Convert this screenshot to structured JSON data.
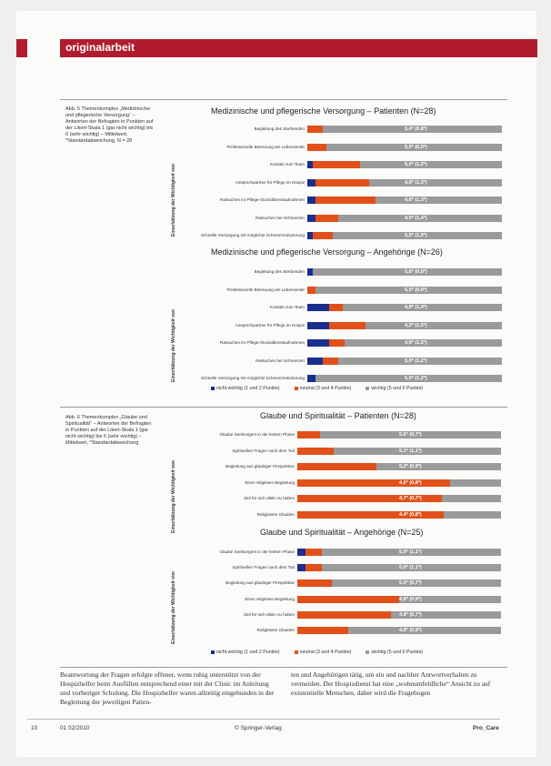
{
  "header": {
    "title": "originalarbeit"
  },
  "captions": [
    {
      "text": "Abb. 5 Themenkomplex „Medizinische und pflegerische Versorgung“ – Antworten der Befragten in Punkten auf der Likert-Skala 1 (gar nicht wichtig) bis 6 (sehr wichtig) – Mittelwert, *Standardabweichung, N = 28"
    },
    {
      "text": "Abb. 6 Themenkomplex „Glaube und Spiritualität“ – Antworten der Befragten in Punkten auf der Likert-Skala 1 (gar nicht wichtig) bis 6 (sehr wichtig) – Mittelwert, *Standardabweichung"
    }
  ],
  "legend": {
    "items": [
      {
        "label": "nicht wichtig (1 und 2 Punkte)",
        "color": "#1a2e8c"
      },
      {
        "label": "neutral (3 und 4 Punkte)",
        "color": "#e2501a"
      },
      {
        "label": "wichtig (5 und 6 Punkte)",
        "color": "#9a9a9a"
      }
    ]
  },
  "chart_data": [
    {
      "type": "bar",
      "title": "Medizinische und pflegerische Versorgung – Patienten (N=28)",
      "ylabel": "Einschätzung der Wichtigkeit von",
      "categories": [
        "Begleitung des Sterbenden",
        "Professionelle Betreuung am Lebensende",
        "Kontakt zum Team",
        "Ansprechpartner für Pflege im Hospiz",
        "Ratsuchen im Pflege-/Sozialdienstaufnahmen",
        "Ratsuchen bei Schmerzen",
        "Schnelle Versorgung mit möglichst Schmerzreduzierung"
      ],
      "series": [
        {
          "values": [
            0,
            0,
            3,
            4,
            4,
            4,
            3
          ]
        },
        {
          "values": [
            8,
            10,
            24,
            28,
            31,
            12,
            10
          ]
        },
        {
          "values": [
            92,
            90,
            73,
            68,
            65,
            84,
            87
          ]
        }
      ],
      "value_labels": [
        "5,4* (0,8*)",
        "5,5* (0,9*)",
        "5,0* (1,2*)",
        "4,8* (1,3*)",
        "4,8* (1,3*)",
        "4,9* (1,4*)",
        "5,5* (1,0*)"
      ]
    },
    {
      "type": "bar",
      "title": "Medizinische und pflegerische Versorgung – Angehörige (N=26)",
      "ylabel": "Einschätzung der Wichtigkeit von",
      "categories": [
        "Begleitung des Sterbenden",
        "Professionelle Betreuung am Lebensende",
        "Kontakt zum Team",
        "Ansprechpartner für Pflege im Hospiz",
        "Ratsuchen im Pflege-/Sozialdienstaufnahmen",
        "Ratsuchen bei Schmerzen",
        "Schnelle Versorgung mit möglichst Schmerzreduzierung"
      ],
      "series": [
        {
          "values": [
            3,
            0,
            11,
            11,
            11,
            8,
            4
          ]
        },
        {
          "values": [
            0,
            4,
            7,
            19,
            8,
            8,
            0
          ]
        },
        {
          "values": [
            97,
            96,
            82,
            70,
            81,
            84,
            96
          ]
        }
      ],
      "value_labels": [
        "5,6* (0,8*)",
        "5,5* (0,9*)",
        "4,9* (1,4*)",
        "4,2* (1,5*)",
        "4,9* (1,5*)",
        "5,0* (1,2*)",
        "5,5* (1,2*)"
      ]
    },
    {
      "type": "bar",
      "title": "Glaube und Spiritualität – Patienten (N=28)",
      "ylabel": "Einschätzung der Wichtigkeit von",
      "categories": [
        "Glaube Seelsorgers in der letzten Phase",
        "Spirituellen Fragen nach dem Tod",
        "Begleitung aus gläubiger Perspektive",
        "Einer religiösen Begleitung",
        "Zeit für sich allein zu haben",
        "Religiösem Glauben"
      ],
      "series": [
        {
          "values": [
            0,
            0,
            0,
            0,
            0,
            0
          ]
        },
        {
          "values": [
            11,
            18,
            39,
            75,
            71,
            72
          ]
        },
        {
          "values": [
            89,
            82,
            61,
            25,
            29,
            28
          ]
        }
      ],
      "value_labels": [
        "5,6* (0,7*)",
        "5,1* (1,1*)",
        "5,2* (0,9*)",
        "4,6* (0,8*)",
        "4,7* (0,7*)",
        "4,4* (0,8*)"
      ]
    },
    {
      "type": "bar",
      "title": "Glaube und Spiritualität – Angehörige (N=25)",
      "ylabel": "Einschätzung der Wichtigkeit von",
      "categories": [
        "Glaube Seelsorgers in der letzten Phase",
        "Spirituellen Fragen nach dem Tod",
        "Begleitung aus gläubiger Perspektive",
        "Einer religiösen Begleitung",
        "Zeit für sich allein zu haben",
        "Religiösem Glauben"
      ],
      "series": [
        {
          "values": [
            4,
            4,
            0,
            0,
            0,
            0
          ]
        },
        {
          "values": [
            8,
            8,
            17,
            50,
            46,
            25
          ]
        },
        {
          "values": [
            88,
            88,
            83,
            50,
            54,
            75
          ]
        }
      ],
      "value_labels": [
        "5,0* (1,1*)",
        "5,0* (1,1*)",
        "5,0* (0,7*)",
        "4,8* (0,9*)",
        "4,8* (0,7*)",
        "4,8* (0,9*)"
      ]
    }
  ],
  "body": {
    "col1": "Beantwortung der Fragen erfolgte offener, wenn ruhig unterstützt von der Hospizhelfer beim Ausfüllen entsprechend einer mit der Clinic im Anleitung und vorheriger Schulung. Die Hospizhelfer waren allzeitig eingebunden in der Begleitung der jeweiligen Patien-",
    "col2": "ten und Angehörigen tätig, um ein und nachher Antwortverhalten zu vermeiden. Der Hospizdienst hat eine „wohnumfeldliche“ Ansicht zu auf existentielle Menschen, daher wird die Fragebogen"
  },
  "footer": {
    "page_number": "10",
    "issue": "01 02/2010",
    "publisher": "© Springer-Verlag",
    "journal": "Pro_Care"
  }
}
